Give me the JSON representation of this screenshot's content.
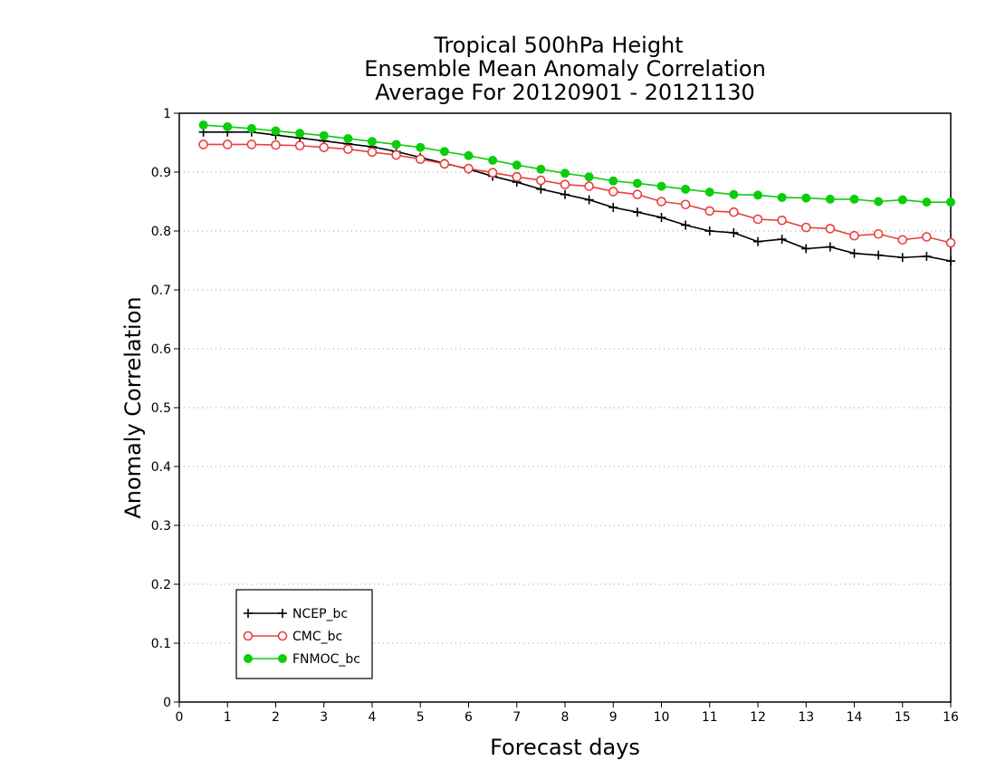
{
  "chart_data": {
    "type": "line",
    "title": [
      "Tropical 500hPa Height",
      "Ensemble Mean Anomaly Correlation",
      "Average For 20120901 - 20121130"
    ],
    "xlabel": "Forecast days",
    "ylabel": "Anomaly Correlation",
    "xlim": [
      0,
      16
    ],
    "ylim": [
      0,
      1
    ],
    "xticks": [
      0,
      1,
      2,
      3,
      4,
      5,
      6,
      7,
      8,
      9,
      10,
      11,
      12,
      13,
      14,
      15,
      16
    ],
    "xtick_labels": [
      "0",
      "1",
      "2",
      "3",
      "4",
      "5",
      "6",
      "7",
      "8",
      "9",
      "10",
      "11",
      "12",
      "13",
      "14",
      "15",
      "16"
    ],
    "yticks": [
      0,
      0.1,
      0.2,
      0.3,
      0.4,
      0.5,
      0.6,
      0.7,
      0.8,
      0.9,
      1
    ],
    "ytick_labels": [
      "0",
      "0.1",
      "0.2",
      "0.3",
      "0.4",
      "0.5",
      "0.6",
      "0.7",
      "0.8",
      "0.9",
      "1"
    ],
    "grid": "horizontal-dotted",
    "legend_position": "bottom-left",
    "x": [
      0.5,
      1,
      1.5,
      2,
      2.5,
      3,
      3.5,
      4,
      4.5,
      5,
      5.5,
      6,
      6.5,
      7,
      7.5,
      8,
      8.5,
      9,
      9.5,
      10,
      10.5,
      11,
      11.5,
      12,
      12.5,
      13,
      13.5,
      14,
      14.5,
      15,
      15.5,
      16
    ],
    "series": [
      {
        "name": "NCEP_bc",
        "color": "#000000",
        "marker": "plus",
        "values": [
          0.968,
          0.968,
          0.968,
          0.963,
          0.958,
          0.953,
          0.948,
          0.943,
          0.935,
          0.925,
          0.915,
          0.905,
          0.893,
          0.883,
          0.871,
          0.862,
          0.853,
          0.84,
          0.832,
          0.823,
          0.81,
          0.8,
          0.797,
          0.782,
          0.786,
          0.77,
          0.773,
          0.762,
          0.759,
          0.755,
          0.757,
          0.749
        ]
      },
      {
        "name": "CMC_bc",
        "color": "#e8413c",
        "marker": "open-circle",
        "values": [
          0.947,
          0.947,
          0.947,
          0.946,
          0.945,
          0.942,
          0.939,
          0.934,
          0.929,
          0.922,
          0.914,
          0.906,
          0.899,
          0.892,
          0.886,
          0.879,
          0.876,
          0.867,
          0.862,
          0.85,
          0.845,
          0.834,
          0.832,
          0.82,
          0.818,
          0.806,
          0.804,
          0.792,
          0.795,
          0.785,
          0.79,
          0.78
        ]
      },
      {
        "name": "FNMOC_bc",
        "color": "#0ccd0c",
        "marker": "filled-circle",
        "values": [
          0.98,
          0.977,
          0.974,
          0.97,
          0.966,
          0.962,
          0.957,
          0.952,
          0.947,
          0.942,
          0.935,
          0.928,
          0.92,
          0.912,
          0.905,
          0.898,
          0.892,
          0.885,
          0.881,
          0.876,
          0.871,
          0.866,
          0.862,
          0.861,
          0.857,
          0.856,
          0.854,
          0.854,
          0.85,
          0.853,
          0.849,
          0.849
        ]
      }
    ]
  }
}
